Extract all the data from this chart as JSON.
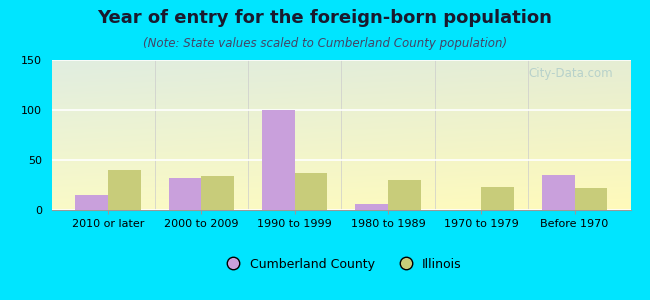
{
  "title": "Year of entry for the foreign-born population",
  "subtitle": "(Note: State values scaled to Cumberland County population)",
  "categories": [
    "2010 or later",
    "2000 to 2009",
    "1990 to 1999",
    "1980 to 1989",
    "1970 to 1979",
    "Before 1970"
  ],
  "cumberland_values": [
    15,
    32,
    100,
    6,
    0,
    35
  ],
  "illinois_values": [
    40,
    34,
    37,
    30,
    23,
    22
  ],
  "cumberland_color": "#c9a0dc",
  "illinois_color": "#c8cc7a",
  "ylim": [
    0,
    150
  ],
  "yticks": [
    0,
    50,
    100,
    150
  ],
  "bg_outer": "#00e5ff",
  "bar_width": 0.35,
  "title_fontsize": 13,
  "subtitle_fontsize": 8.5,
  "legend_labels": [
    "Cumberland County",
    "Illinois"
  ],
  "watermark": "City-Data.com",
  "title_color": "#1a1a2e",
  "subtitle_color": "#444466",
  "tick_fontsize": 8
}
